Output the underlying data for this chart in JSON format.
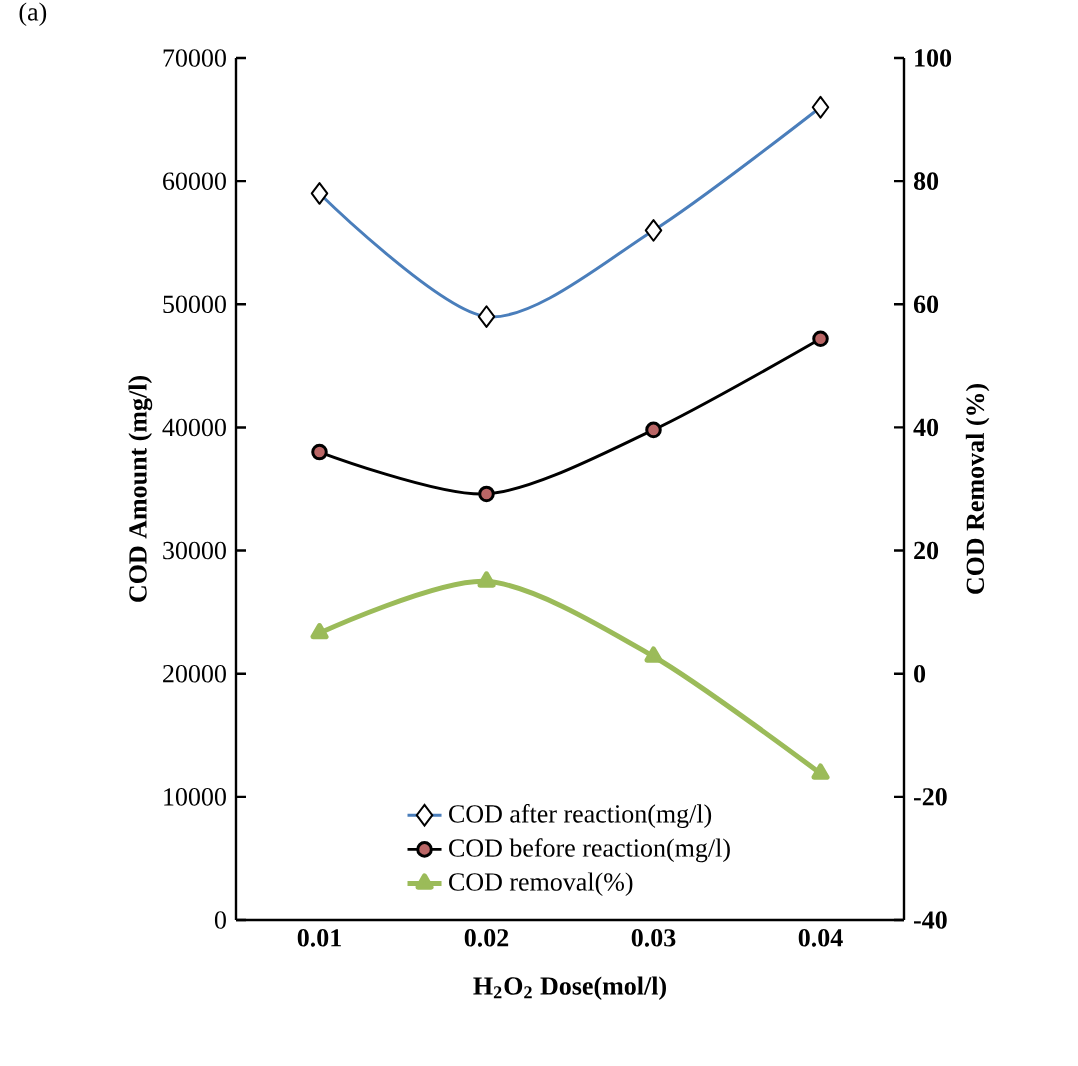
{
  "chart_data": {
    "type": "line",
    "xlabel": "H$_{2}$O$_{2}$ Dose(mol/l)",
    "ylabel": "COD Amount (mg/l)",
    "y2label": "COD Removal (%)",
    "annotations": [
      "(a)"
    ],
    "categories": [
      "0.01",
      "0.02",
      "0.03",
      "0.04"
    ],
    "series": [
      {
        "name": "COD after reaction(mg/l)",
        "color": "#4a7ebb",
        "marker": "diamond",
        "values": [
          59000,
          49000,
          56000,
          66000
        ]
      },
      {
        "name": "COD before reaction(mg/l)",
        "color": "#000000",
        "marker": "circle",
        "values": [
          38000,
          34600,
          39800,
          47200
        ]
      },
      {
        "name": "COD removal(%)",
        "color": "#9bbb59",
        "marker": "triangle",
        "axis": "y2",
        "values": [
          6.6,
          15.0,
          2.8,
          -16.2
        ]
      }
    ],
    "ylim": [
      0,
      70000
    ],
    "yticks": [
      0,
      10000,
      20000,
      30000,
      40000,
      50000,
      60000,
      70000
    ],
    "y2lim": [
      -40,
      100
    ],
    "y2ticks": [
      -40,
      -20,
      0,
      20,
      40,
      60,
      80,
      100
    ],
    "legend": "bottom",
    "grid": false
  }
}
